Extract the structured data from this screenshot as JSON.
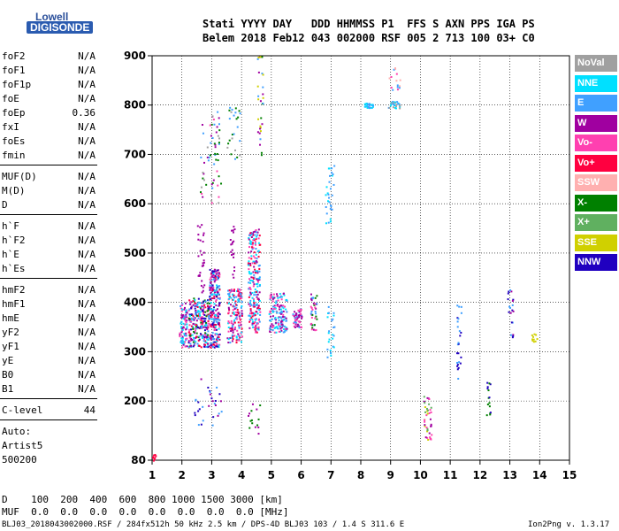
{
  "logo": {
    "line1": "Lowell",
    "line2": "DIGISONDE"
  },
  "header": {
    "line1": "Stati YYYY DAY   DDD HHMMSS P1  FFS S AXN PPS IGA PS",
    "line2": "Belem 2018 Feb12 043 002000 RSF 005 2 713 100 03+ C0"
  },
  "params_groups": [
    [
      [
        "foF2",
        "N/A"
      ],
      [
        "foF1",
        "N/A"
      ],
      [
        "foF1p",
        "N/A"
      ],
      [
        "foE",
        "N/A"
      ],
      [
        "foEp",
        "0.36"
      ],
      [
        "fxI",
        "N/A"
      ],
      [
        "foEs",
        "N/A"
      ],
      [
        "fmin",
        "N/A"
      ]
    ],
    [
      [
        "MUF(D)",
        "N/A"
      ],
      [
        "M(D)",
        "N/A"
      ],
      [
        "D",
        "N/A"
      ]
    ],
    [
      [
        "h`F",
        "N/A"
      ],
      [
        "h`F2",
        "N/A"
      ],
      [
        "h`E",
        "N/A"
      ],
      [
        "h`Es",
        "N/A"
      ]
    ],
    [
      [
        "hmF2",
        "N/A"
      ],
      [
        "hmF1",
        "N/A"
      ],
      [
        "hmE",
        "N/A"
      ],
      [
        "yF2",
        "N/A"
      ],
      [
        "yF1",
        "N/A"
      ],
      [
        "yE",
        "N/A"
      ],
      [
        "B0",
        "N/A"
      ],
      [
        "B1",
        "N/A"
      ]
    ],
    [
      [
        "C-level",
        "44"
      ]
    ]
  ],
  "auto": {
    "line1": "Auto:",
    "line2": "Artist5",
    "line3": "500200"
  },
  "legend": [
    {
      "label": "NoVal",
      "color": "#a0a0a0"
    },
    {
      "label": "NNE",
      "color": "#00e0ff"
    },
    {
      "label": "E",
      "color": "#40a0ff"
    },
    {
      "label": "W",
      "color": "#a000a0"
    },
    {
      "label": "Vo-",
      "color": "#ff40b0"
    },
    {
      "label": "Vo+",
      "color": "#ff0040"
    },
    {
      "label": "SSW",
      "color": "#ffb0b0"
    },
    {
      "label": "X-",
      "color": "#008000"
    },
    {
      "label": "X+",
      "color": "#60b060"
    },
    {
      "label": "SSE",
      "color": "#d0d000"
    },
    {
      "label": "NNW",
      "color": "#2000c0"
    }
  ],
  "footer": {
    "d_line": "D    100  200  400  600  800 1000 1500 3000 [km]",
    "muf_line": "MUF  0.0  0.0  0.0  0.0  0.0  0.0  0.0  0.0 [MHz]",
    "bottom": "BLJ03_2018043002000.RSF / 284fx512h 50 kHz 2.5 km / DPS-4D BLJ03 103 / 1.4 S 311.6 E",
    "version": "Ion2Png v. 1.3.17"
  },
  "chart_data": {
    "type": "scatter",
    "title": "",
    "xlabel": "",
    "ylabel": "",
    "xlim": [
      1,
      15
    ],
    "ylim": [
      80,
      900
    ],
    "x_ticks": [
      1,
      2,
      3,
      4,
      5,
      6,
      7,
      8,
      9,
      10,
      11,
      12,
      13,
      14,
      15
    ],
    "y_ticks": [
      80,
      200,
      300,
      400,
      500,
      600,
      700,
      800,
      900
    ],
    "grid": true,
    "clusters": [
      {
        "x": [
          1.9,
          2.15
        ],
        "y": [
          310,
          400
        ],
        "n": 90,
        "colors": [
          "#40a0ff",
          "#a000a0",
          "#ff40b0",
          "#00e0ff"
        ]
      },
      {
        "x": [
          2.2,
          2.9
        ],
        "y": [
          310,
          410
        ],
        "n": 260,
        "colors": [
          "#40a0ff",
          "#a000a0",
          "#ff40b0",
          "#ff0040",
          "#00e0ff",
          "#008000",
          "#2000c0"
        ]
      },
      {
        "x": [
          2.9,
          3.25
        ],
        "y": [
          310,
          470
        ],
        "n": 250,
        "colors": [
          "#40a0ff",
          "#a000a0",
          "#ff40b0",
          "#00e0ff",
          "#2000c0",
          "#ff0040"
        ]
      },
      {
        "x": [
          2.6,
          3.3
        ],
        "y": [
          600,
          790
        ],
        "n": 60,
        "colors": [
          "#a0a0a0",
          "#40a0ff",
          "#008000",
          "#ff40b0",
          "#a000a0"
        ]
      },
      {
        "x": [
          2.5,
          2.75
        ],
        "y": [
          420,
          560
        ],
        "n": 30,
        "colors": [
          "#a000a0"
        ]
      },
      {
        "x": [
          3.5,
          4.0
        ],
        "y": [
          320,
          430
        ],
        "n": 170,
        "colors": [
          "#40a0ff",
          "#a000a0",
          "#ff40b0",
          "#00e0ff",
          "#ff0040"
        ]
      },
      {
        "x": [
          3.6,
          3.75
        ],
        "y": [
          450,
          560
        ],
        "n": 20,
        "colors": [
          "#a000a0"
        ]
      },
      {
        "x": [
          3.5,
          3.95
        ],
        "y": [
          690,
          800
        ],
        "n": 25,
        "colors": [
          "#40a0ff",
          "#a0a0a0",
          "#008000"
        ]
      },
      {
        "x": [
          4.2,
          4.6
        ],
        "y": [
          340,
          550
        ],
        "n": 230,
        "colors": [
          "#a000a0",
          "#ff40b0",
          "#40a0ff",
          "#ff0040",
          "#00e0ff"
        ]
      },
      {
        "x": [
          4.5,
          4.7
        ],
        "y": [
          700,
          900
        ],
        "n": 30,
        "colors": [
          "#a000a0",
          "#008000",
          "#40a0ff",
          "#d0d000"
        ]
      },
      {
        "x": [
          4.9,
          5.5
        ],
        "y": [
          340,
          420
        ],
        "n": 150,
        "colors": [
          "#a000a0",
          "#ff40b0",
          "#40a0ff",
          "#00e0ff"
        ]
      },
      {
        "x": [
          5.7,
          6.0
        ],
        "y": [
          350,
          390
        ],
        "n": 60,
        "colors": [
          "#ff40b0",
          "#40a0ff",
          "#a000a0"
        ]
      },
      {
        "x": [
          6.3,
          6.5
        ],
        "y": [
          340,
          420
        ],
        "n": 40,
        "colors": [
          "#a000a0",
          "#ff40b0",
          "#40a0ff",
          "#008000"
        ]
      },
      {
        "x": [
          6.8,
          7.1
        ],
        "y": [
          560,
          680
        ],
        "n": 30,
        "colors": [
          "#40a0ff",
          "#00e0ff"
        ]
      },
      {
        "x": [
          6.85,
          7.1
        ],
        "y": [
          290,
          400
        ],
        "n": 25,
        "colors": [
          "#40a0ff",
          "#00e0ff"
        ]
      },
      {
        "x": [
          8.1,
          8.4
        ],
        "y": [
          795,
          805
        ],
        "n": 25,
        "colors": [
          "#40a0ff",
          "#00e0ff"
        ]
      },
      {
        "x": [
          8.9,
          9.3
        ],
        "y": [
          795,
          810
        ],
        "n": 30,
        "colors": [
          "#40a0ff",
          "#00e0ff",
          "#a0a0a0"
        ]
      },
      {
        "x": [
          8.9,
          9.3
        ],
        "y": [
          830,
          880
        ],
        "n": 15,
        "colors": [
          "#ff40b0",
          "#ffb0b0",
          "#40a0ff"
        ]
      },
      {
        "x": [
          10.1,
          10.35
        ],
        "y": [
          120,
          215
        ],
        "n": 40,
        "colors": [
          "#a000a0",
          "#d0d000",
          "#60b060",
          "#ff40b0"
        ]
      },
      {
        "x": [
          11.2,
          11.35
        ],
        "y": [
          230,
          400
        ],
        "n": 25,
        "colors": [
          "#2000c0",
          "#40a0ff"
        ]
      },
      {
        "x": [
          12.2,
          12.35
        ],
        "y": [
          170,
          240
        ],
        "n": 15,
        "colors": [
          "#2000c0",
          "#008000"
        ]
      },
      {
        "x": [
          12.9,
          13.1
        ],
        "y": [
          330,
          430
        ],
        "n": 20,
        "colors": [
          "#a000a0",
          "#40a0ff",
          "#2000c0"
        ]
      },
      {
        "x": [
          13.7,
          13.9
        ],
        "y": [
          320,
          340
        ],
        "n": 10,
        "colors": [
          "#d0d000"
        ]
      },
      {
        "x": [
          2.4,
          3.4
        ],
        "y": [
          150,
          250
        ],
        "n": 30,
        "colors": [
          "#a000a0",
          "#2000c0",
          "#40a0ff"
        ]
      },
      {
        "x": [
          4.2,
          4.6
        ],
        "y": [
          130,
          200
        ],
        "n": 15,
        "colors": [
          "#a000a0",
          "#008000"
        ]
      },
      {
        "x": [
          1.0,
          1.1
        ],
        "y": [
          80,
          95
        ],
        "n": 8,
        "colors": [
          "#ff0040"
        ]
      }
    ]
  }
}
